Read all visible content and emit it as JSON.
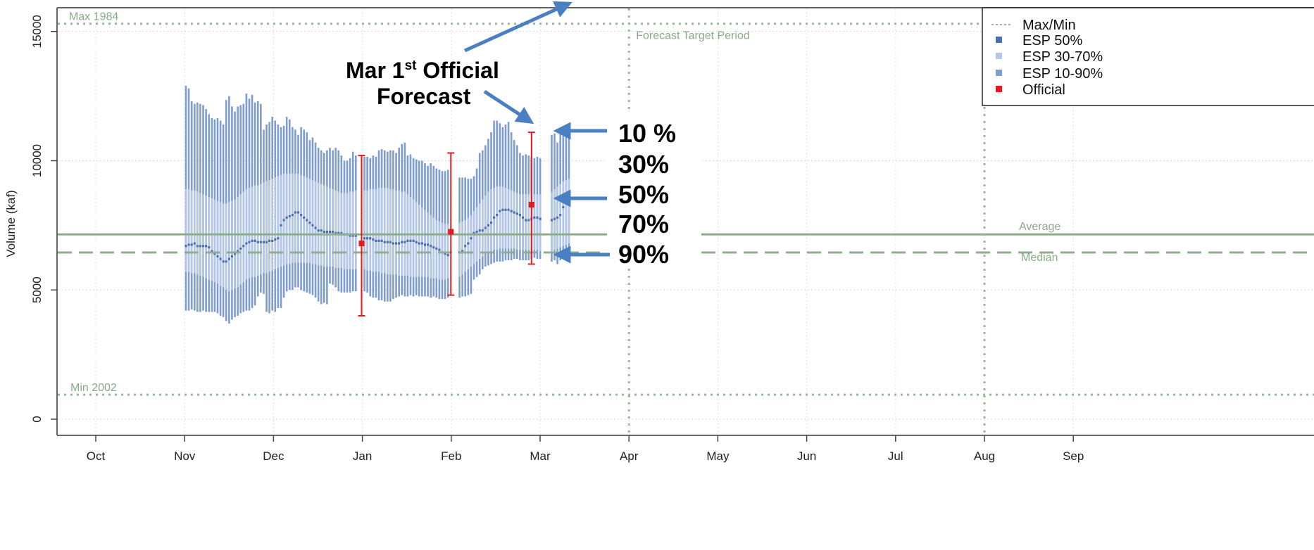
{
  "chart_data": {
    "type": "line",
    "title": "",
    "xlabel": "",
    "ylabel": "Volume (kaf)",
    "ylim": [
      -600,
      16000
    ],
    "yticks": [
      0,
      5000,
      10000,
      15000
    ],
    "months": [
      "Oct",
      "Nov",
      "Dec",
      "Jan",
      "Feb",
      "Mar",
      "Apr",
      "May",
      "Jun",
      "Jul",
      "Aug",
      "Sep"
    ],
    "grid": true,
    "legend_position": "top-right",
    "legend": [
      {
        "label": "Max/Min",
        "color": "#9bb89b",
        "marker": "dotted-line"
      },
      {
        "label": "ESP 50%",
        "color": "#4a6fb0",
        "marker": "square"
      },
      {
        "label": "ESP 30-70%",
        "color": "#b3c6e6",
        "marker": "square"
      },
      {
        "label": "ESP 10-90%",
        "color": "#7f9dd0",
        "marker": "square"
      },
      {
        "label": "Official",
        "color": "#e41a1c",
        "marker": "square"
      }
    ],
    "reference_lines": {
      "max": {
        "label": "Max  1984",
        "value": 15300
      },
      "min": {
        "label": "Min  2002",
        "value": 950
      },
      "average": {
        "label": "Average",
        "value": 7150
      },
      "median": {
        "label": "Median",
        "value": 6450
      }
    },
    "forecast_target_period": {
      "label": "Forecast Target Period",
      "start": "Apr",
      "end": "Aug"
    },
    "esp_days": [
      0,
      1,
      2,
      3,
      4,
      5,
      6,
      7,
      8,
      9,
      10,
      11,
      12,
      13,
      14,
      15,
      16,
      17,
      18,
      19,
      20,
      21,
      22,
      23,
      24,
      25,
      26,
      27,
      28,
      29,
      30,
      31,
      32,
      33,
      34,
      35,
      36,
      37,
      38,
      39,
      40,
      41,
      42,
      43,
      44,
      45,
      46,
      47,
      48,
      49,
      50,
      51,
      52,
      53,
      54,
      55,
      56,
      57,
      58,
      59,
      62,
      63,
      64,
      65,
      66,
      67,
      68,
      69,
      70,
      71,
      72,
      73,
      74,
      75,
      76,
      77,
      78,
      79,
      80,
      81,
      82,
      83,
      84,
      85,
      86,
      87,
      88,
      89,
      90,
      91,
      95,
      96,
      97,
      98,
      99,
      100,
      101,
      102,
      103,
      104,
      105,
      106,
      107,
      108,
      109,
      110,
      111,
      112,
      113,
      114,
      115,
      116,
      117,
      118,
      119,
      120,
      121,
      122,
      123,
      127,
      128,
      129,
      130,
      131,
      132,
      133
    ],
    "esp_series": [
      {
        "name": "ESP 10-90%",
        "high": [
          12900,
          12800,
          12300,
          12200,
          12250,
          12200,
          12150,
          12000,
          11800,
          11650,
          11600,
          11650,
          11550,
          11400,
          12350,
          12500,
          12100,
          11900,
          12100,
          12150,
          12200,
          12600,
          12400,
          12550,
          12250,
          12300,
          12200,
          11200,
          11400,
          11500,
          11700,
          11550,
          11400,
          11300,
          11350,
          11700,
          11600,
          11300,
          11200,
          11000,
          11300,
          11200,
          11100,
          10800,
          10900,
          10700,
          10500,
          10400,
          10300,
          10400,
          10500,
          10400,
          10500,
          10400,
          10200,
          10000,
          10000,
          10100,
          10350,
          10200,
          10150,
          10150,
          10100,
          10200,
          10150,
          10400,
          10450,
          10400,
          10350,
          10400,
          10400,
          10300,
          10500,
          10650,
          10700,
          10200,
          10250,
          10100,
          10050,
          10000,
          10000,
          9900,
          9800,
          9900,
          9800,
          9700,
          9650,
          9600,
          9600,
          9650,
          9350,
          9350,
          9350,
          9300,
          9300,
          9400,
          9700,
          10300,
          10400,
          10600,
          10850,
          11100,
          11550,
          11550,
          11450,
          11300,
          11400,
          11500,
          11100,
          10800,
          10600,
          10300,
          10200,
          10250,
          10200,
          10150,
          10100,
          10150,
          10100,
          11000,
          11050,
          10700,
          11050,
          11100,
          11100,
          11150
        ],
        "low": [
          4200,
          4200,
          4250,
          4200,
          4150,
          4150,
          4200,
          4150,
          4150,
          4150,
          4150,
          4100,
          4000,
          3950,
          3800,
          3700,
          3850,
          3950,
          4000,
          4100,
          4150,
          4200,
          4200,
          4300,
          4400,
          4750,
          4900,
          4850,
          4150,
          4100,
          4200,
          4150,
          4300,
          4300,
          4700,
          4950,
          5000,
          5000,
          5100,
          5100,
          5000,
          4950,
          4900,
          4850,
          4800,
          4700,
          4550,
          4450,
          4500,
          4450,
          5250,
          5200,
          5100,
          4950,
          4900,
          4900,
          4900,
          4900,
          4950,
          4950,
          4950,
          4900,
          4750,
          4700,
          4700,
          4600,
          4600,
          4550,
          4550,
          4550,
          4650,
          4700,
          4750,
          4800,
          4750,
          4750,
          4800,
          4750,
          4800,
          4750,
          4750,
          4750,
          4750,
          4700,
          4750,
          4700,
          4650,
          4650,
          4650,
          4700,
          4700,
          4750,
          4750,
          4800,
          4850,
          5400,
          5500,
          5600,
          5800,
          5900,
          5950,
          6000,
          6050,
          6100,
          6100,
          6100,
          6150,
          6150,
          6150,
          6200,
          6200,
          6150,
          6150,
          6150,
          6150,
          6200,
          6250,
          6200,
          6200,
          6100,
          6150,
          6000,
          6150,
          6300,
          6400,
          6450
        ],
        "color": "#7f9dd0"
      },
      {
        "name": "ESP 30-70%",
        "high": [
          8900,
          8900,
          8850,
          8850,
          8800,
          8750,
          8700,
          8650,
          8600,
          8550,
          8500,
          8450,
          8400,
          8350,
          8350,
          8400,
          8450,
          8500,
          8600,
          8700,
          8800,
          8900,
          8950,
          9000,
          9050,
          9050,
          9100,
          9150,
          9200,
          9250,
          9300,
          9350,
          9400,
          9450,
          9500,
          9500,
          9500,
          9500,
          9500,
          9500,
          9450,
          9400,
          9350,
          9300,
          9250,
          9200,
          9150,
          9100,
          9050,
          9000,
          8950,
          8900,
          8850,
          8800,
          8750,
          8750,
          8750,
          8800,
          8800,
          8850,
          8850,
          8850,
          8900,
          8900,
          8900,
          8950,
          8950,
          8950,
          8950,
          8900,
          8900,
          8850,
          8850,
          8800,
          8800,
          8700,
          8600,
          8500,
          8400,
          8300,
          8200,
          8100,
          8000,
          7900,
          7800,
          7700,
          7650,
          7600,
          7550,
          7550,
          7600,
          7650,
          7700,
          7800,
          7900,
          8050,
          8200,
          8350,
          8500,
          8650,
          8800,
          8900,
          8950,
          9000,
          9000,
          9000,
          8950,
          8900,
          8850,
          8800,
          8750,
          8700,
          8700,
          8700,
          8700,
          8700,
          8700,
          8700,
          8700,
          8800,
          8900,
          9000,
          9100,
          9200,
          9250,
          9300
        ],
        "low": [
          5700,
          5700,
          5650,
          5650,
          5600,
          5550,
          5500,
          5450,
          5400,
          5350,
          5300,
          5250,
          5150,
          5100,
          5000,
          4950,
          5000,
          5050,
          5100,
          5200,
          5300,
          5400,
          5450,
          5500,
          5500,
          5550,
          5600,
          5650,
          5650,
          5700,
          5750,
          5800,
          5850,
          5900,
          5950,
          6000,
          6000,
          6050,
          6050,
          6050,
          6050,
          6050,
          6050,
          6050,
          6000,
          6000,
          5950,
          5950,
          5900,
          5900,
          5900,
          5900,
          5850,
          5850,
          5850,
          5800,
          5800,
          5800,
          5800,
          5800,
          5800,
          5750,
          5750,
          5700,
          5700,
          5700,
          5650,
          5650,
          5600,
          5600,
          5600,
          5600,
          5550,
          5550,
          5550,
          5550,
          5500,
          5500,
          5500,
          5500,
          5500,
          5500,
          5500,
          5450,
          5450,
          5450,
          5400,
          5400,
          5400,
          5450,
          5500,
          5600,
          5700,
          5800,
          5900,
          6000,
          6100,
          6200,
          6300,
          6400,
          6450,
          6500,
          6550,
          6550,
          6600,
          6600,
          6600,
          6600,
          6600,
          6600,
          6550,
          6550,
          6550,
          6550,
          6550,
          6550,
          6550,
          6550,
          6500,
          6500,
          6550,
          6600,
          6650,
          6700,
          6750,
          6800
        ],
        "color": "#b3c6e6"
      },
      {
        "name": "ESP 50%",
        "values": [
          6700,
          6750,
          6750,
          6800,
          6700,
          6700,
          6700,
          6700,
          6650,
          6500,
          6400,
          6300,
          6200,
          6100,
          6100,
          6200,
          6300,
          6400,
          6500,
          6600,
          6700,
          6800,
          6850,
          6900,
          6900,
          6850,
          6850,
          6850,
          6850,
          6900,
          6900,
          6950,
          7000,
          7500,
          7700,
          7800,
          7850,
          7900,
          8000,
          8000,
          7900,
          7800,
          7700,
          7600,
          7500,
          7400,
          7300,
          7300,
          7250,
          7250,
          7250,
          7250,
          7200,
          7200,
          7200,
          7150,
          7150,
          7100,
          7100,
          7100,
          7000,
          7000,
          7000,
          6950,
          6900,
          6900,
          6900,
          6850,
          6850,
          6850,
          6800,
          6800,
          6800,
          6850,
          6850,
          6900,
          6900,
          6900,
          6850,
          6800,
          6800,
          6750,
          6750,
          6700,
          6650,
          6600,
          6550,
          6450,
          6400,
          6350,
          6450,
          6500,
          6700,
          6800,
          7000,
          7200,
          7250,
          7300,
          7300,
          7400,
          7500,
          7600,
          7800,
          7900,
          8050,
          8100,
          8100,
          8100,
          8050,
          8000,
          7950,
          7900,
          7800,
          7700,
          7700,
          7750,
          7800,
          7800,
          7750,
          7700,
          7750,
          7800,
          7900,
          8200,
          8400,
          8550
        ],
        "color": "#4a6fb0"
      }
    ],
    "official": [
      {
        "date": "Jan 1",
        "day": 61,
        "value": 6800,
        "low": 4000,
        "high": 10200
      },
      {
        "date": "Feb 1",
        "day": 92,
        "value": 7250,
        "low": 4800,
        "high": 10300
      },
      {
        "date": "Mar 1",
        "day": 120,
        "value": 8300,
        "low": 6000,
        "high": 11100
      }
    ]
  },
  "annotations": {
    "official_forecast_line1": "Mar 1",
    "official_forecast_sup": "st",
    "official_forecast_line1_rest": " Official",
    "official_forecast_line2": "Forecast",
    "percentiles": [
      {
        "label": "10 %",
        "arrow": true
      },
      {
        "label": "30%",
        "arrow": false
      },
      {
        "label": "50%",
        "arrow": true
      },
      {
        "label": "70%",
        "arrow": false
      },
      {
        "label": "90%",
        "arrow": true
      }
    ]
  }
}
